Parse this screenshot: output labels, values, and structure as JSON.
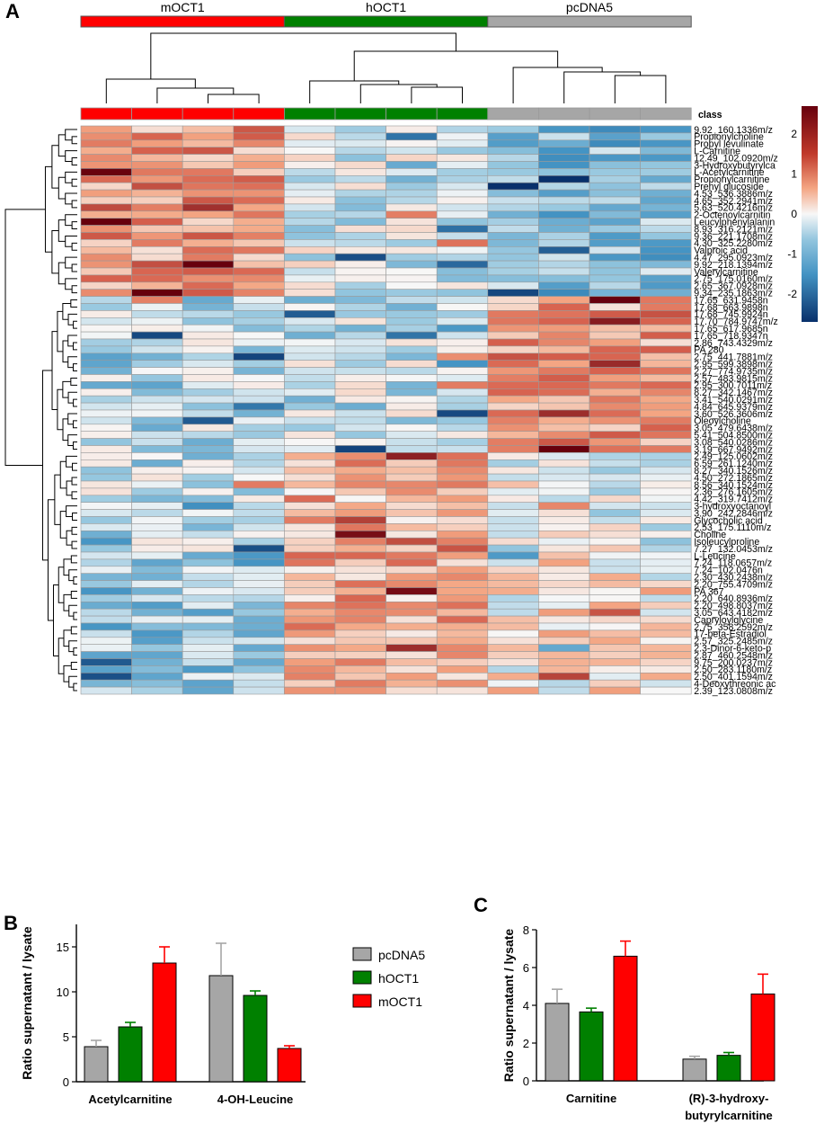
{
  "panels": {
    "a": "A",
    "b": "B",
    "c": "C"
  },
  "chart_data": [
    {
      "type": "heatmap",
      "panel": "A",
      "groups": [
        "mOCT1",
        "hOCT1",
        "pcDNA5"
      ],
      "group_colors": [
        "#ff0000",
        "#008000",
        "#a6a6a6"
      ],
      "class_label": "class",
      "samples_per_group": 4,
      "color_scale": {
        "min": -2.7,
        "max": 2.7,
        "ticks": [
          2,
          1,
          0,
          -1,
          -2
        ],
        "low": "#08306b",
        "mid": "#f7f7f7",
        "high": "#67000d"
      },
      "rows": [
        "9.92_160.1336m/z",
        "Propionylcholine",
        "Propyl levulinate",
        "L-Carnitine",
        "12.49_102.0920m/z",
        "3-Hydroxybutyrylca",
        "L-Acetylcarnitine",
        "Propionylcarnitine",
        "Prenyl glucoside",
        "4.53_536.3886m/z",
        "4.65_352.2941m/z",
        "5.63_520.4216m/z",
        "2-Octenoylcarnitin",
        "Leucylphenylalanin",
        "8.93_316.2121m/z",
        "9.36_221.1708m/z",
        "4.30_325.2280m/z",
        "Valproic acid",
        "4.47_295.0923m/z",
        "9.92_218.1394m/z",
        "Valerylcarnitine",
        "2.75_175.0160m/z",
        "2.65_367.0928m/z",
        "9.34_235.1863m/z",
        "17.65_631.9458n",
        "17.68_663.9898n",
        "17.68_745.9924n",
        "17.70_784.9747m/z",
        "17.65_617.9685n",
        "17.65_718.9347n",
        "2.86_743.4329m/z",
        "PA 280",
        "2.75_441.7881m/z",
        "2.95_599.3898m/z",
        "2.27_774.9735m/z",
        "2.57_483.9815m/z",
        "2.95_300.7011m/z",
        "8.27_342.1467m/z",
        "3.41_540.0291m/z",
        "4.84_645.9379m/z",
        "3.60_526.3606m/z",
        "Oleoylcholine",
        "3.05_479.6438m/z",
        "5.41_504.8500m/z",
        "3.08_540.0286m/z",
        "3.19_667.9492m/z",
        "2.49_125.0602m/z",
        "6.59_261.1240m/z",
        "8.27_340.1526m/z",
        "4.50_272.1865m/z",
        "8.56_340.1524m/z",
        "2.36_276.1605m/z",
        "4.42_319.7412m/z",
        "3-hydroxyoctanoyl",
        "3.90_242.2846m/z",
        "Glycocholic acid",
        "2.53_175.1110m/z",
        "Choline",
        "Isoleucylproline",
        "7.27_132.0453m/z",
        "L-Leucine",
        "7.24_118.0657m/z",
        "7.24_102.0476n",
        "2.30_430.2438m/z",
        "2.20_755.4709m/z",
        "PA 367",
        "2.20_640.8936m/z",
        "2.20_498.8037m/z",
        "3.05_643.4182m/z",
        "Capryloylglycine",
        "2.75_358.2592m/z",
        "17-beta-Estradiol",
        "2.57_325.2485m/z",
        "2.3-Dinor-6-keto-p",
        "2.87_460.2548m/z",
        "9.75_200.0237m/z",
        "2.50_283.1180m/z",
        "2.50_401.1594m/z",
        "4-Deoxythreonic ac",
        "2.39_123.0808m/z"
      ]
    },
    {
      "type": "bar",
      "panel": "B",
      "ylabel": "Ratio supernatant / lysate",
      "ylim": [
        0,
        17.5
      ],
      "yticks": [
        0,
        5,
        10,
        15
      ],
      "categories": [
        "Acetylcarnitine",
        "4-OH-Leucine"
      ],
      "series": [
        {
          "name": "pcDNA5",
          "color": "#a6a6a6",
          "values": [
            3.9,
            11.8
          ],
          "errors": [
            0.7,
            3.6
          ]
        },
        {
          "name": "hOCT1",
          "color": "#008000",
          "values": [
            6.1,
            9.6
          ],
          "errors": [
            0.5,
            0.5
          ]
        },
        {
          "name": "mOCT1",
          "color": "#ff0000",
          "values": [
            13.2,
            3.7
          ],
          "errors": [
            1.8,
            0.3
          ]
        }
      ],
      "legend": [
        "pcDNA5",
        "hOCT1",
        "mOCT1"
      ]
    },
    {
      "type": "bar",
      "panel": "C",
      "ylabel": "Ratio supernatant / lysate",
      "ylim": [
        0,
        8
      ],
      "yticks": [
        0,
        2,
        4,
        6,
        8
      ],
      "categories": [
        "Carnitine",
        "(R)-3-hydroxy-butyrylcarnitine"
      ],
      "category_lines": [
        [
          "Carnitine"
        ],
        [
          "(R)-3-hydroxy-",
          "butyrylcarnitine"
        ]
      ],
      "series": [
        {
          "name": "pcDNA5",
          "color": "#a6a6a6",
          "values": [
            4.1,
            1.15
          ],
          "errors": [
            0.75,
            0.15
          ]
        },
        {
          "name": "hOCT1",
          "color": "#008000",
          "values": [
            3.65,
            1.35
          ],
          "errors": [
            0.2,
            0.15
          ]
        },
        {
          "name": "mOCT1",
          "color": "#ff0000",
          "values": [
            6.6,
            4.6
          ],
          "errors": [
            0.8,
            1.05
          ]
        }
      ]
    }
  ]
}
